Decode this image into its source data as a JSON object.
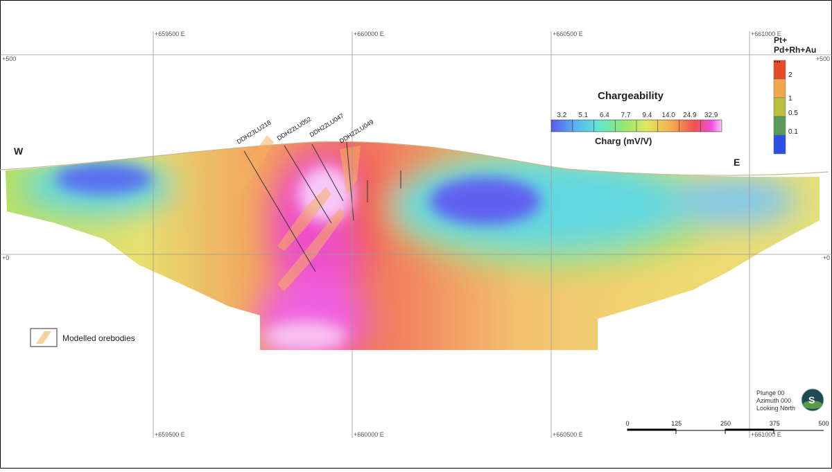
{
  "grid": {
    "top": [
      "+659500 E",
      "+660000 E",
      "+660500 E",
      "+661000 E"
    ],
    "bottom": [
      "+659500 E",
      "+660000 E",
      "+660500 E",
      "+661000 E"
    ],
    "left": [
      "+500",
      "+0"
    ],
    "right": [
      "+500",
      "+0"
    ]
  },
  "directions": {
    "west": "W",
    "east": "E"
  },
  "drillholes": [
    "DDH23LU218",
    "DDH22LU052",
    "DDH22LU047",
    "DDH22LU049"
  ],
  "chargeability": {
    "title": "Chargeability",
    "ticks": [
      "3.2",
      "5.1",
      "6.4",
      "7.7",
      "9.4",
      "14.0",
      "24.9",
      "32.9"
    ],
    "unit": "Charg (mV/V)"
  },
  "grade_legend": {
    "title": "Pt+ Pd+Rh+Au ...",
    "labels": [
      2,
      1,
      0.5,
      0.1
    ]
  },
  "orebody_legend": "Modelled orebodies",
  "view": [
    "Plunge 00",
    "Azimuth 000",
    "Looking North"
  ],
  "scale_bar": [
    0,
    125,
    250,
    375,
    500
  ]
}
